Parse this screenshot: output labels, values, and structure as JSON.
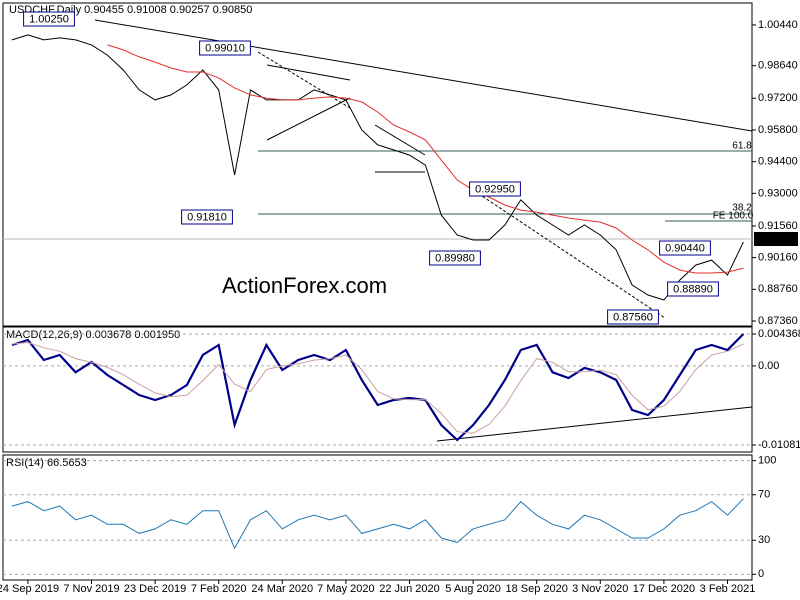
{
  "chart_data": [
    {
      "type": "line",
      "title": "USDCHF,Daily  0.90455 0.91008 0.90257 0.90850",
      "watermark": "ActionForex.com",
      "categories": [
        null,
        "24 Sep 2019",
        null,
        null,
        null,
        "7 Nov 2019",
        null,
        null,
        null,
        "23 Dec 2019",
        null,
        null,
        null,
        "7 Feb 2020",
        null,
        null,
        null,
        "24 Mar 2020",
        null,
        null,
        null,
        "7 May 2020",
        null,
        null,
        null,
        "22 Jun 2020",
        null,
        null,
        null,
        "5 Aug 2020",
        null,
        null,
        null,
        "18 Sep 2020",
        null,
        null,
        null,
        "3 Nov 2020",
        null,
        null,
        null,
        "17 Dec 2020",
        null,
        null,
        null,
        "3 Feb 2021",
        null
      ],
      "series": [
        {
          "color": "#000000",
          "line_width": 1,
          "values": [
            0.9978,
            1.0,
            0.9978,
            0.9987,
            0.9978,
            0.9956,
            0.9911,
            0.9845,
            0.9757,
            0.9713,
            0.9735,
            0.9779,
            0.9845,
            0.9757,
            0.9381,
            0.9757,
            0.9713,
            0.9713,
            0.9713,
            0.9757,
            0.9735,
            0.9713,
            0.958,
            0.9514,
            0.9492,
            0.9469,
            0.9425,
            0.9204,
            0.9116,
            0.9094,
            0.9094,
            0.916,
            0.9271,
            0.9204,
            0.916,
            0.9116,
            0.916,
            0.9116,
            0.905,
            0.8895,
            0.8851,
            0.8829,
            0.8917,
            0.8983,
            0.9005,
            0.8939,
            0.9085
          ]
        },
        {
          "color": "#e0312e",
          "line_width": 1,
          "values": [
            null,
            null,
            null,
            null,
            null,
            null,
            0.9956,
            0.9934,
            0.9903,
            0.988,
            0.9854,
            0.9836,
            0.9836,
            0.981,
            0.9766,
            0.9735,
            0.9721,
            0.9713,
            0.9713,
            0.9721,
            0.9726,
            0.9721,
            0.9704,
            0.9659,
            0.9602,
            0.9571,
            0.9536,
            0.9447,
            0.9359,
            0.9315,
            0.9284,
            0.9248,
            0.9226,
            0.9217,
            0.9204,
            0.9191,
            0.9182,
            0.9173,
            0.9147,
            0.9094,
            0.905,
            0.8996,
            0.8961,
            0.8948,
            0.8948,
            0.8952,
            0.897
          ]
        }
      ],
      "ylim": [
        0.8714,
        1.0141
      ],
      "yticks": [
        {
          "value": 1.0044,
          "label": "1.00440"
        },
        {
          "value": 0.9864,
          "label": "0.98640"
        },
        {
          "value": 0.972,
          "label": "0.97200"
        },
        {
          "value": 0.958,
          "label": "0.95800"
        },
        {
          "value": 0.944,
          "label": "0.94400"
        },
        {
          "value": 0.93,
          "label": "0.93000"
        },
        {
          "value": 0.9156,
          "label": "0.91560"
        },
        {
          "value": 0.9016,
          "label": "0.90160"
        },
        {
          "value": 0.8876,
          "label": "0.88760"
        },
        {
          "value": 0.8736,
          "label": "0.87360"
        }
      ],
      "grid": false,
      "annotations": [
        "1.00250",
        "0.99010",
        "0.91810",
        "0.89980",
        "0.92950",
        "0.90440",
        "0.88890",
        "0.87560",
        "0.90850",
        "61.8",
        "38.2",
        "FE 100.0"
      ]
    },
    {
      "type": "line",
      "title": "MACD(12,26,9) 0.003678 0.001950",
      "series": [
        {
          "color": "#00008b",
          "line_width": 2.2,
          "values": [
            0.00286,
            0.00355,
            0.00081,
            0.0015,
            -0.00087,
            0.00054,
            -0.00124,
            -0.00261,
            -0.00397,
            -0.00466,
            -0.00397,
            -0.00261,
            0.0015,
            0.00286,
            -0.00808,
            -0.00192,
            0.00286,
            -0.00056,
            0.00081,
            0.0015,
            0.00081,
            0.00218,
            -0.00192,
            -0.00534,
            -0.00466,
            -0.00438,
            -0.00466,
            -0.00808,
            -0.01013,
            -0.00808,
            -0.00534,
            -0.00192,
            0.00218,
            0.00286,
            -0.00087,
            -0.00165,
            -0.00028,
            -0.00087,
            -0.00192,
            -0.00603,
            -0.00671,
            -0.00466,
            -0.00124,
            0.00218,
            0.00286,
            0.00218,
            0.00437
          ]
        },
        {
          "color": "#c8a0a0",
          "line_width": 1,
          "values": [
            0.003,
            0.0032,
            0.0025,
            0.002,
            0.001,
            0.0005,
            -0.0002,
            -0.0012,
            -0.0025,
            -0.0037,
            -0.0042,
            -0.004,
            -0.002,
            0.0002,
            -0.0025,
            -0.0035,
            -0.0005,
            0.0,
            0.0003,
            0.0008,
            0.001,
            0.0015,
            -0.0005,
            -0.0035,
            -0.0045,
            -0.0046,
            -0.0046,
            -0.0065,
            -0.009,
            -0.0092,
            -0.008,
            -0.0055,
            -0.002,
            0.001,
            0.0005,
            -0.0008,
            -0.0008,
            -0.0006,
            -0.0012,
            -0.004,
            -0.006,
            -0.0055,
            -0.0035,
            -0.0005,
            0.0015,
            0.002,
            0.003
          ]
        }
      ],
      "ylim": [
        -0.01177,
        0.005325
      ],
      "yticks": [
        0.004368,
        {
          "value": 0,
          "label": "0.00"
        },
        -0.010813
      ],
      "grid": true
    },
    {
      "type": "line",
      "title": "RSI(14) 66.5653",
      "series": [
        {
          "color": "#1e78b4",
          "line_width": 1,
          "values": [
            60,
            64,
            56,
            60,
            48,
            52,
            44,
            44,
            36,
            40,
            48,
            44,
            56,
            56,
            23,
            48,
            56,
            40,
            48,
            52,
            48,
            52,
            36,
            40,
            44,
            40,
            48,
            32,
            28,
            40,
            44,
            48,
            64,
            52,
            44,
            40,
            52,
            48,
            40,
            32,
            32,
            40,
            52,
            56,
            64,
            52,
            66.5653
          ]
        }
      ],
      "ylim": [
        -5,
        105
      ],
      "yticks": [
        100,
        70,
        30,
        0
      ],
      "grid": true
    }
  ]
}
